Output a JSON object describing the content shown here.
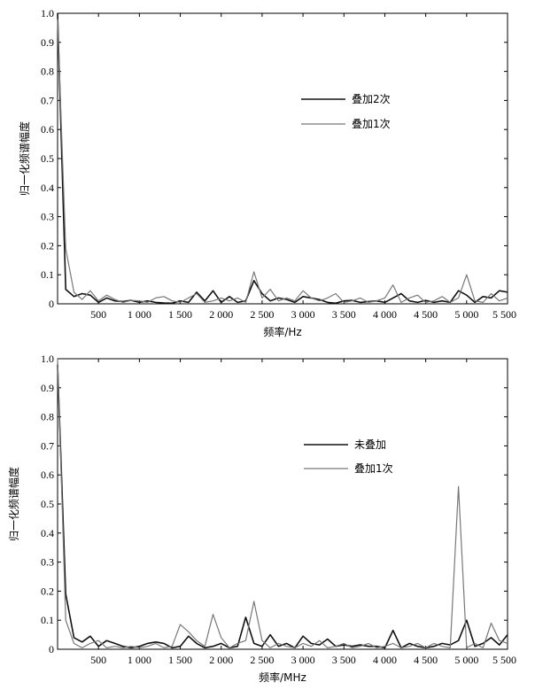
{
  "chart_data": [
    {
      "type": "line",
      "xlabel": "频率/Hz",
      "ylabel": "归一化频谱幅度",
      "xlim": [
        0,
        5500
      ],
      "ylim": [
        0,
        1.0
      ],
      "xticks": [
        500,
        1000,
        1500,
        2000,
        2500,
        3000,
        3500,
        4000,
        4500,
        5000,
        5500
      ],
      "xtick_labels": [
        "500",
        "1 000",
        "1 500",
        "2 000",
        "2 500",
        "3 000",
        "3 500",
        "4 000",
        "4 500",
        "5 000",
        "5 500"
      ],
      "yticks": [
        0,
        0.1,
        0.2,
        0.3,
        0.4,
        0.5,
        0.6,
        0.7,
        0.8,
        0.9,
        1.0
      ],
      "ytick_labels": [
        "0",
        "0.1",
        "0.2",
        "0.3",
        "0.4",
        "0.5",
        "0.6",
        "0.7",
        "0.8",
        "0.9",
        "1.0"
      ],
      "legend_position": "right-upper",
      "series": [
        {
          "name": "叠加2次",
          "color": "#111111",
          "width": 1.6,
          "x": [
            0,
            100,
            200,
            300,
            400,
            500,
            600,
            700,
            800,
            900,
            1000,
            1100,
            1200,
            1300,
            1400,
            1500,
            1600,
            1700,
            1800,
            1900,
            2000,
            2100,
            2200,
            2300,
            2400,
            2500,
            2600,
            2700,
            2800,
            2900,
            3000,
            3100,
            3200,
            3300,
            3400,
            3500,
            3600,
            3700,
            3800,
            3900,
            4000,
            4100,
            4200,
            4300,
            4400,
            4500,
            4600,
            4700,
            4800,
            4900,
            5000,
            5100,
            5200,
            5300,
            5400,
            5500
          ],
          "y": [
            1.0,
            0.05,
            0.025,
            0.035,
            0.03,
            0.005,
            0.02,
            0.01,
            0.008,
            0.012,
            0.005,
            0.01,
            0.005,
            0.003,
            0.002,
            0.01,
            0.005,
            0.04,
            0.01,
            0.045,
            0.005,
            0.025,
            0.005,
            0.01,
            0.08,
            0.035,
            0.01,
            0.02,
            0.015,
            0.005,
            0.025,
            0.02,
            0.015,
            0.005,
            0.002,
            0.01,
            0.012,
            0.005,
            0.008,
            0.01,
            0.005,
            0.02,
            0.035,
            0.01,
            0.005,
            0.012,
            0.005,
            0.01,
            0.005,
            0.045,
            0.03,
            0.005,
            0.025,
            0.02,
            0.045,
            0.04
          ]
        },
        {
          "name": "叠加1次",
          "color": "#777777",
          "width": 1.2,
          "x": [
            0,
            100,
            200,
            300,
            400,
            500,
            600,
            700,
            800,
            900,
            1000,
            1100,
            1200,
            1300,
            1400,
            1500,
            1600,
            1700,
            1800,
            1900,
            2000,
            2100,
            2200,
            2300,
            2400,
            2500,
            2600,
            2700,
            2800,
            2900,
            3000,
            3100,
            3200,
            3300,
            3400,
            3500,
            3600,
            3700,
            3800,
            3900,
            4000,
            4100,
            4200,
            4300,
            4400,
            4500,
            4600,
            4700,
            4800,
            4900,
            5000,
            5100,
            5200,
            5300,
            5400,
            5500
          ],
          "y": [
            0.98,
            0.19,
            0.04,
            0.015,
            0.045,
            0.01,
            0.03,
            0.015,
            0.005,
            0.012,
            0.01,
            0.005,
            0.02,
            0.025,
            0.01,
            0.005,
            0.02,
            0.035,
            0.005,
            0.01,
            0.02,
            0.01,
            0.02,
            0.005,
            0.11,
            0.02,
            0.05,
            0.01,
            0.02,
            0.01,
            0.045,
            0.02,
            0.01,
            0.02,
            0.035,
            0.005,
            0.01,
            0.02,
            0.005,
            0.01,
            0.02,
            0.065,
            0.005,
            0.02,
            0.03,
            0.005,
            0.01,
            0.025,
            0.005,
            0.02,
            0.1,
            0.01,
            0.005,
            0.035,
            0.01,
            0.02
          ]
        }
      ]
    },
    {
      "type": "line",
      "xlabel": "频率/MHz",
      "ylabel": "归一化频谱幅度",
      "xlim": [
        0,
        5500
      ],
      "ylim": [
        0,
        1.0
      ],
      "xticks": [
        500,
        1000,
        1500,
        2000,
        2500,
        3000,
        3500,
        4000,
        4500,
        5000,
        5500
      ],
      "xtick_labels": [
        "500",
        "1 000",
        "1 500",
        "2 000",
        "2 500",
        "3 000",
        "3 500",
        "4 000",
        "4 500",
        "5 000",
        "5 500"
      ],
      "yticks": [
        0,
        0.1,
        0.2,
        0.3,
        0.4,
        0.5,
        0.6,
        0.7,
        0.8,
        0.9,
        1.0
      ],
      "ytick_labels": [
        "0",
        "0.1",
        "0.2",
        "0.3",
        "0.4",
        "0.5",
        "0.6",
        "0.7",
        "0.8",
        "0.9",
        "1.0"
      ],
      "legend_position": "right-upper",
      "series": [
        {
          "name": "未叠加",
          "color": "#111111",
          "width": 1.6,
          "x": [
            0,
            100,
            200,
            300,
            400,
            500,
            600,
            700,
            800,
            900,
            1000,
            1100,
            1200,
            1300,
            1400,
            1500,
            1600,
            1700,
            1800,
            1900,
            2000,
            2100,
            2200,
            2300,
            2400,
            2500,
            2600,
            2700,
            2800,
            2900,
            3000,
            3100,
            3200,
            3300,
            3400,
            3500,
            3600,
            3700,
            3800,
            3900,
            4000,
            4100,
            4200,
            4300,
            4400,
            4500,
            4600,
            4700,
            4800,
            4900,
            5000,
            5100,
            5200,
            5300,
            5400,
            5500
          ],
          "y": [
            0.98,
            0.19,
            0.04,
            0.025,
            0.045,
            0.01,
            0.03,
            0.02,
            0.01,
            0.005,
            0.01,
            0.02,
            0.025,
            0.02,
            0.005,
            0.01,
            0.045,
            0.02,
            0.005,
            0.01,
            0.02,
            0.005,
            0.01,
            0.11,
            0.02,
            0.01,
            0.05,
            0.01,
            0.02,
            0.005,
            0.045,
            0.02,
            0.015,
            0.035,
            0.01,
            0.015,
            0.01,
            0.015,
            0.01,
            0.01,
            0.005,
            0.065,
            0.005,
            0.02,
            0.01,
            0.005,
            0.01,
            0.02,
            0.015,
            0.03,
            0.1,
            0.01,
            0.02,
            0.04,
            0.015,
            0.05
          ]
        },
        {
          "name": "叠加1次",
          "color": "#777777",
          "width": 1.2,
          "x": [
            0,
            100,
            200,
            300,
            400,
            500,
            600,
            700,
            800,
            900,
            1000,
            1100,
            1200,
            1300,
            1400,
            1500,
            1600,
            1700,
            1800,
            1900,
            2000,
            2100,
            2200,
            2300,
            2400,
            2500,
            2600,
            2700,
            2800,
            2900,
            3000,
            3100,
            3200,
            3300,
            3400,
            3500,
            3600,
            3700,
            3800,
            3900,
            4000,
            4100,
            4200,
            4300,
            4400,
            4500,
            4600,
            4700,
            4800,
            4900,
            5000,
            5100,
            5200,
            5300,
            5400,
            5500
          ],
          "y": [
            1.0,
            0.1,
            0.02,
            0.005,
            0.02,
            0.03,
            0.005,
            0.01,
            0.005,
            0.01,
            0.005,
            0.01,
            0.02,
            0.005,
            0.01,
            0.085,
            0.06,
            0.03,
            0.01,
            0.12,
            0.04,
            0.005,
            0.02,
            0.03,
            0.165,
            0.03,
            0.005,
            0.02,
            0.01,
            0.005,
            0.02,
            0.01,
            0.03,
            0.005,
            0.01,
            0.02,
            0.005,
            0.01,
            0.02,
            0.005,
            0.01,
            0.02,
            0.005,
            0.01,
            0.02,
            0.005,
            0.02,
            0.01,
            0.005,
            0.56,
            0.005,
            0.02,
            0.005,
            0.09,
            0.03,
            0.02
          ]
        }
      ]
    }
  ]
}
